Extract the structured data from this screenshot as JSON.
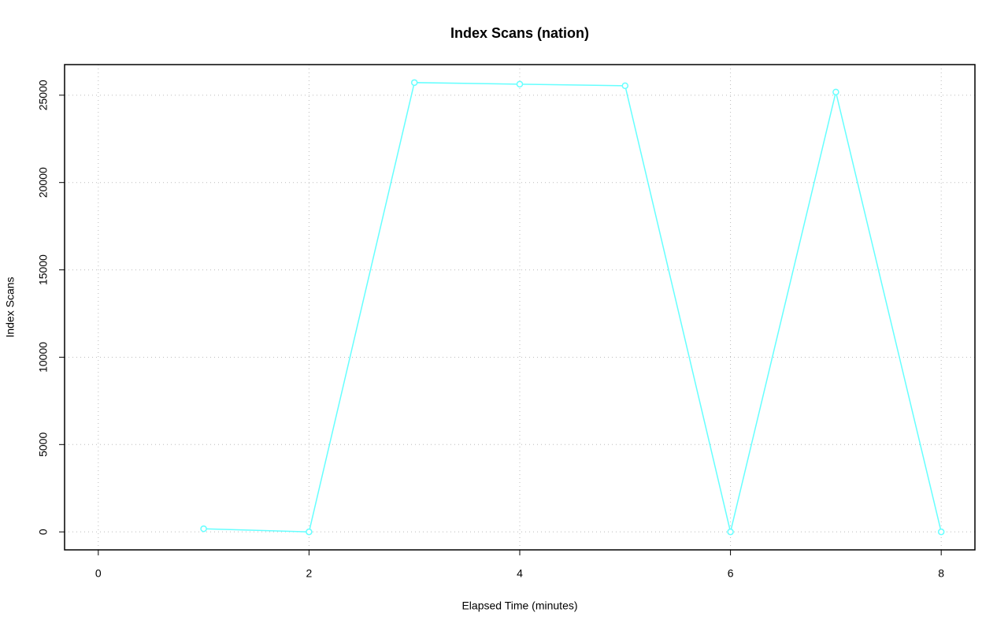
{
  "chart_data": {
    "type": "line",
    "title": "Index Scans (nation)",
    "x_label": "Elapsed Time (minutes)",
    "y_label": "Index Scans",
    "x": [
      1,
      2,
      3,
      4,
      5,
      6,
      7,
      8
    ],
    "series": [
      {
        "name": "nation",
        "color": "#66ffff",
        "values": [
          180,
          0,
          25722,
          25632,
          25541,
          0,
          25180,
          0
        ]
      }
    ],
    "xlim": [
      -0.32,
      8.32
    ],
    "xticks": [
      0,
      2,
      4,
      6,
      8
    ],
    "ylim": [
      -1029,
      26751
    ],
    "yticks": [
      0,
      5000,
      10000,
      15000,
      20000,
      25000
    ],
    "grid": true
  }
}
